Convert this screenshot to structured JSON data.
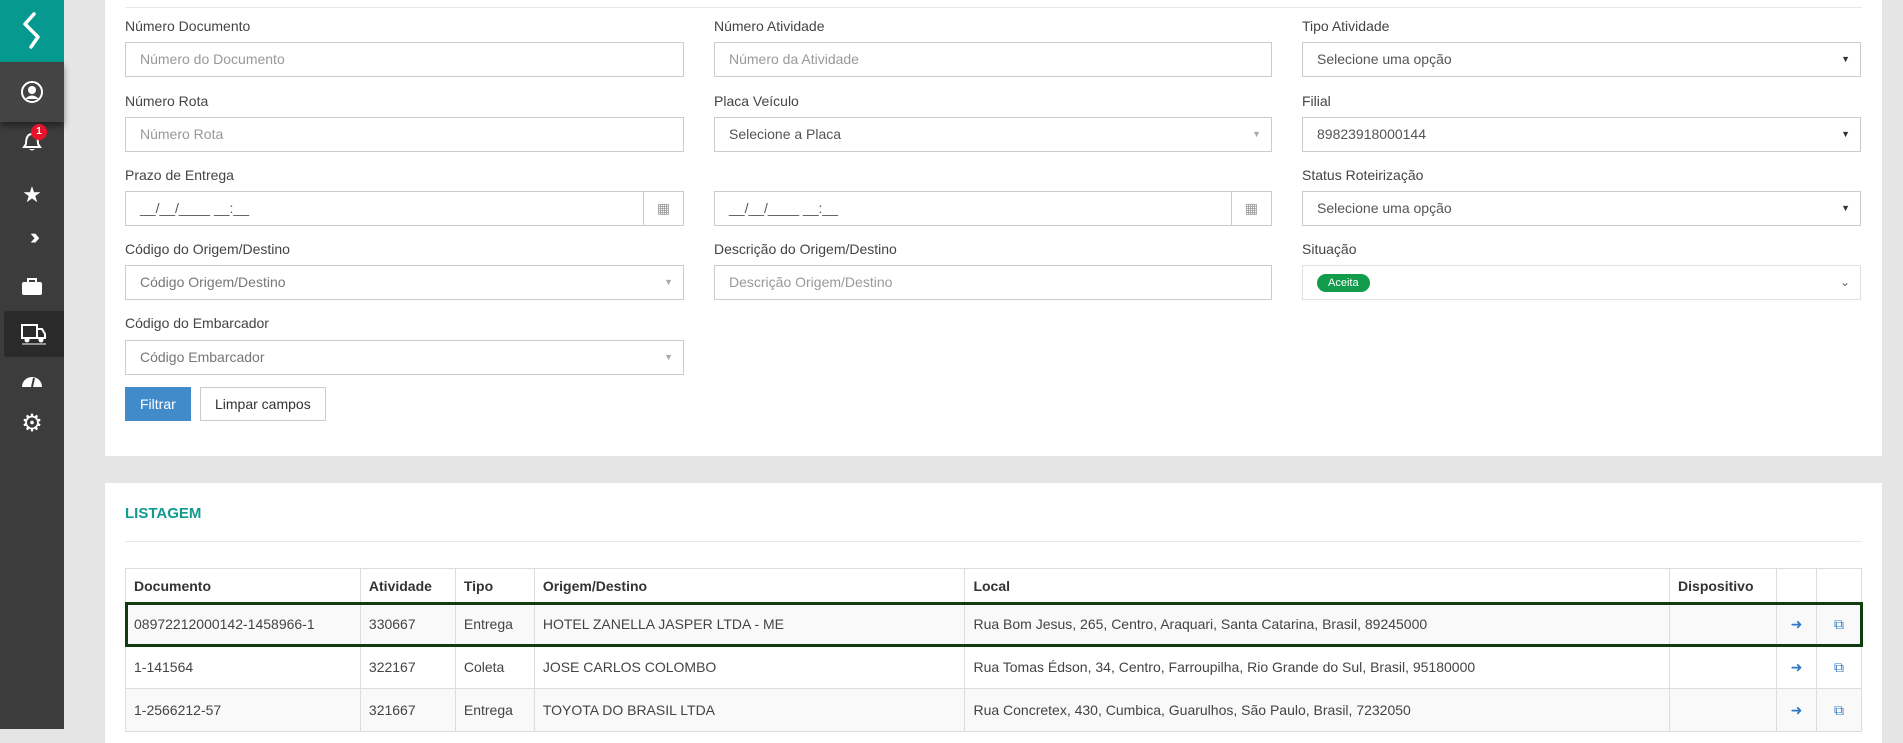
{
  "sidebar": {
    "notification_count": "1",
    "items": [
      "user-icon",
      "bell-icon",
      "star-icon",
      "chevrons-icon",
      "briefcase-icon",
      "truck-icon",
      "dashboard-icon",
      "gear-icon"
    ],
    "active": "truck-icon"
  },
  "filters": {
    "numero_documento": {
      "label": "Número Documento",
      "placeholder": "Número do Documento"
    },
    "numero_atividade": {
      "label": "Número Atividade",
      "placeholder": "Número da Atividade"
    },
    "tipo_atividade": {
      "label": "Tipo Atividade",
      "value": "Selecione uma opção"
    },
    "numero_rota": {
      "label": "Número Rota",
      "placeholder": "Número Rota"
    },
    "placa_veiculo": {
      "label": "Placa Veículo",
      "placeholder": "Selecione a Placa"
    },
    "filial": {
      "label": "Filial",
      "value": "89823918000144"
    },
    "prazo_entrega": {
      "label": "Prazo de Entrega",
      "from_placeholder": "__/__/____ __:__",
      "to_placeholder": "__/__/____ __:__"
    },
    "status_roteirizacao": {
      "label": "Status Roteirização",
      "value": "Selecione uma opção"
    },
    "codigo_origem": {
      "label": "Código do Origem/Destino",
      "placeholder": "Código Origem/Destino"
    },
    "descricao_origem": {
      "label": "Descrição do Origem/Destino",
      "placeholder": "Descrição Origem/Destino"
    },
    "situacao": {
      "label": "Situação",
      "selected": "Aceita",
      "color": "#129b4b"
    },
    "codigo_embarcador": {
      "label": "Código do Embarcador",
      "placeholder": "Código Embarcador"
    },
    "filter_button": "Filtrar",
    "clear_button": "Limpar campos"
  },
  "listing": {
    "title": "LISTAGEM",
    "columns": [
      "Documento",
      "Atividade",
      "Tipo",
      "Origem/Destino",
      "Local",
      "Dispositivo",
      "",
      ""
    ],
    "rows": [
      {
        "documento": "08972212000142-1458966-1",
        "atividade": "330667",
        "tipo": "Entrega",
        "origem": "HOTEL ZANELLA JASPER LTDA - ME",
        "local": "Rua Bom Jesus, 265, Centro, Araquari, Santa Catarina, Brasil, 89245000",
        "dispositivo": ""
      },
      {
        "documento": "1-141564",
        "atividade": "322167",
        "tipo": "Coleta",
        "origem": "JOSE CARLOS COLOMBO",
        "local": "Rua Tomas Édson, 34, Centro, Farroupilha, Rio Grande do Sul, Brasil, 95180000",
        "dispositivo": ""
      },
      {
        "documento": "1-2566212-57",
        "atividade": "321667",
        "tipo": "Entrega",
        "origem": "TOYOTA DO BRASIL LTDA",
        "local": "Rua Concretex, 430, Cumbica, Guarulhos, São Paulo, Brasil, 7232050",
        "dispositivo": ""
      }
    ]
  }
}
